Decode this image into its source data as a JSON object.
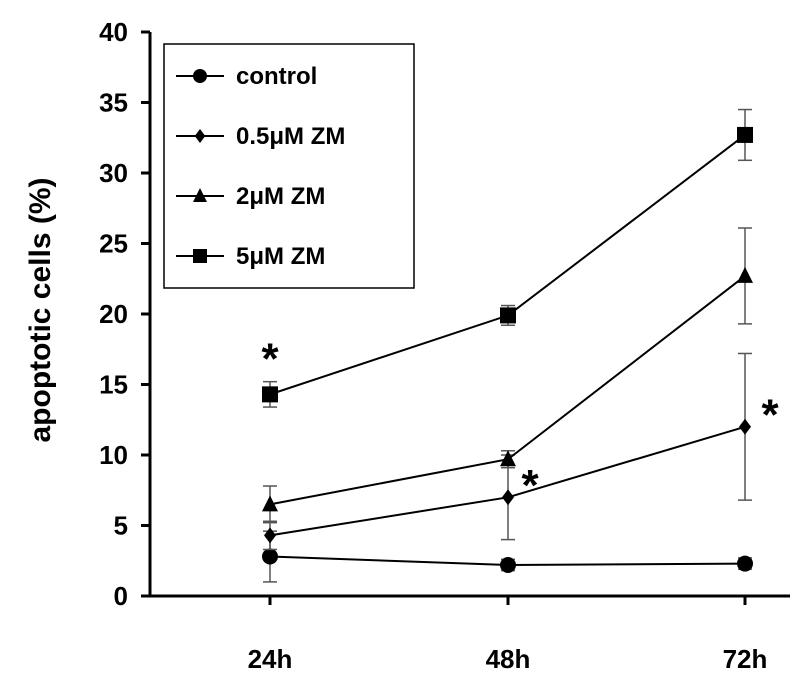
{
  "chart_data": {
    "type": "line",
    "title": "",
    "xlabel": "",
    "ylabel": "apoptotic cells (%)",
    "categories": [
      "24h",
      "48h",
      "72h"
    ],
    "ylim": [
      0,
      40
    ],
    "yticks": [
      "0",
      "5",
      "10",
      "15",
      "20",
      "25",
      "30",
      "35",
      "40"
    ],
    "grid": false,
    "legend": "top-left, boxed",
    "series": [
      {
        "name": "control",
        "marker": "circle",
        "values": [
          2.8,
          2.2,
          2.3
        ],
        "errors": [
          1.8,
          0.4,
          0.4
        ]
      },
      {
        "name": "0.5μM ZM",
        "marker": "diamond",
        "values": [
          4.3,
          7.0,
          12.0
        ],
        "errors": [
          1.0,
          3.0,
          5.2
        ]
      },
      {
        "name": "2μM ZM",
        "marker": "triangle",
        "values": [
          6.5,
          9.7,
          22.7
        ],
        "errors": [
          1.3,
          0.6,
          3.4
        ]
      },
      {
        "name": "5μM ZM",
        "marker": "square",
        "values": [
          14.3,
          19.9,
          32.7
        ],
        "errors": [
          0.9,
          0.7,
          1.8
        ]
      }
    ],
    "annotations": [
      {
        "text": "*",
        "x": "24h",
        "y": 17.5
      },
      {
        "text": "*",
        "x": "48h",
        "y": 8.5
      },
      {
        "text": "*",
        "x": "72h",
        "y": 13.5
      }
    ]
  }
}
